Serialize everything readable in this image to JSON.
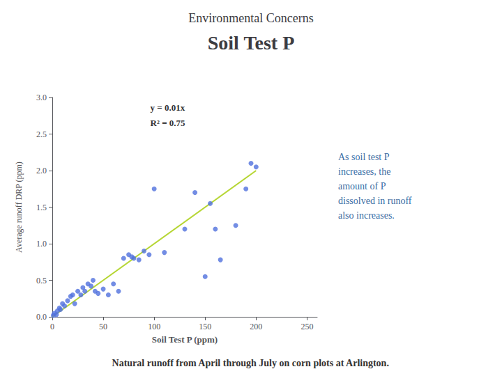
{
  "chart_data": {
    "type": "scatter",
    "title": "Environmental Concerns",
    "subtitle": "Soil Test P",
    "xlabel": "Soil Test P (ppm)",
    "ylabel": "Average runoff DRP (ppm)",
    "series": [
      {
        "type": "scatter",
        "x": [
          1,
          2,
          4,
          5,
          7,
          8,
          10,
          12,
          15,
          18,
          20,
          22,
          25,
          28,
          30,
          32,
          35,
          38,
          40,
          42,
          45,
          50,
          55,
          60,
          65,
          70,
          75,
          78,
          80,
          85,
          90,
          95,
          100,
          110,
          130,
          140,
          150,
          155,
          160,
          165,
          180,
          190,
          195,
          200
        ],
        "values": [
          0.02,
          0.05,
          0.03,
          0.08,
          0.12,
          0.1,
          0.18,
          0.15,
          0.22,
          0.28,
          0.3,
          0.18,
          0.35,
          0.3,
          0.4,
          0.35,
          0.45,
          0.42,
          0.5,
          0.35,
          0.32,
          0.38,
          0.3,
          0.45,
          0.35,
          0.8,
          0.85,
          0.82,
          0.8,
          0.78,
          0.9,
          0.85,
          1.75,
          0.88,
          1.2,
          1.7,
          0.55,
          1.55,
          1.2,
          0.78,
          1.25,
          1.75,
          2.1,
          2.05
        ]
      },
      {
        "type": "line",
        "x": [
          0,
          200
        ],
        "values": [
          0.0,
          2.0
        ]
      }
    ],
    "annotations": [
      "y = 0.01x",
      "R² = 0.75",
      "As soil test P\nincreases, the\namount of P\ndissolved in runoff\nalso increases.",
      "Natural runoff from April through July on corn plots at Arlington."
    ],
    "xlim": [
      0,
      260
    ],
    "ylim": [
      0.0,
      3.0
    ],
    "xticks": [
      0,
      50,
      100,
      150,
      200,
      250
    ],
    "yticks": [
      {
        "value": 0,
        "label": "0.0"
      },
      0.5,
      {
        "value": 1,
        "label": "1.0"
      },
      1.5,
      {
        "value": 2,
        "label": "2.0"
      },
      2.5,
      {
        "value": 3,
        "label": "3.0"
      }
    ],
    "grid": false
  }
}
